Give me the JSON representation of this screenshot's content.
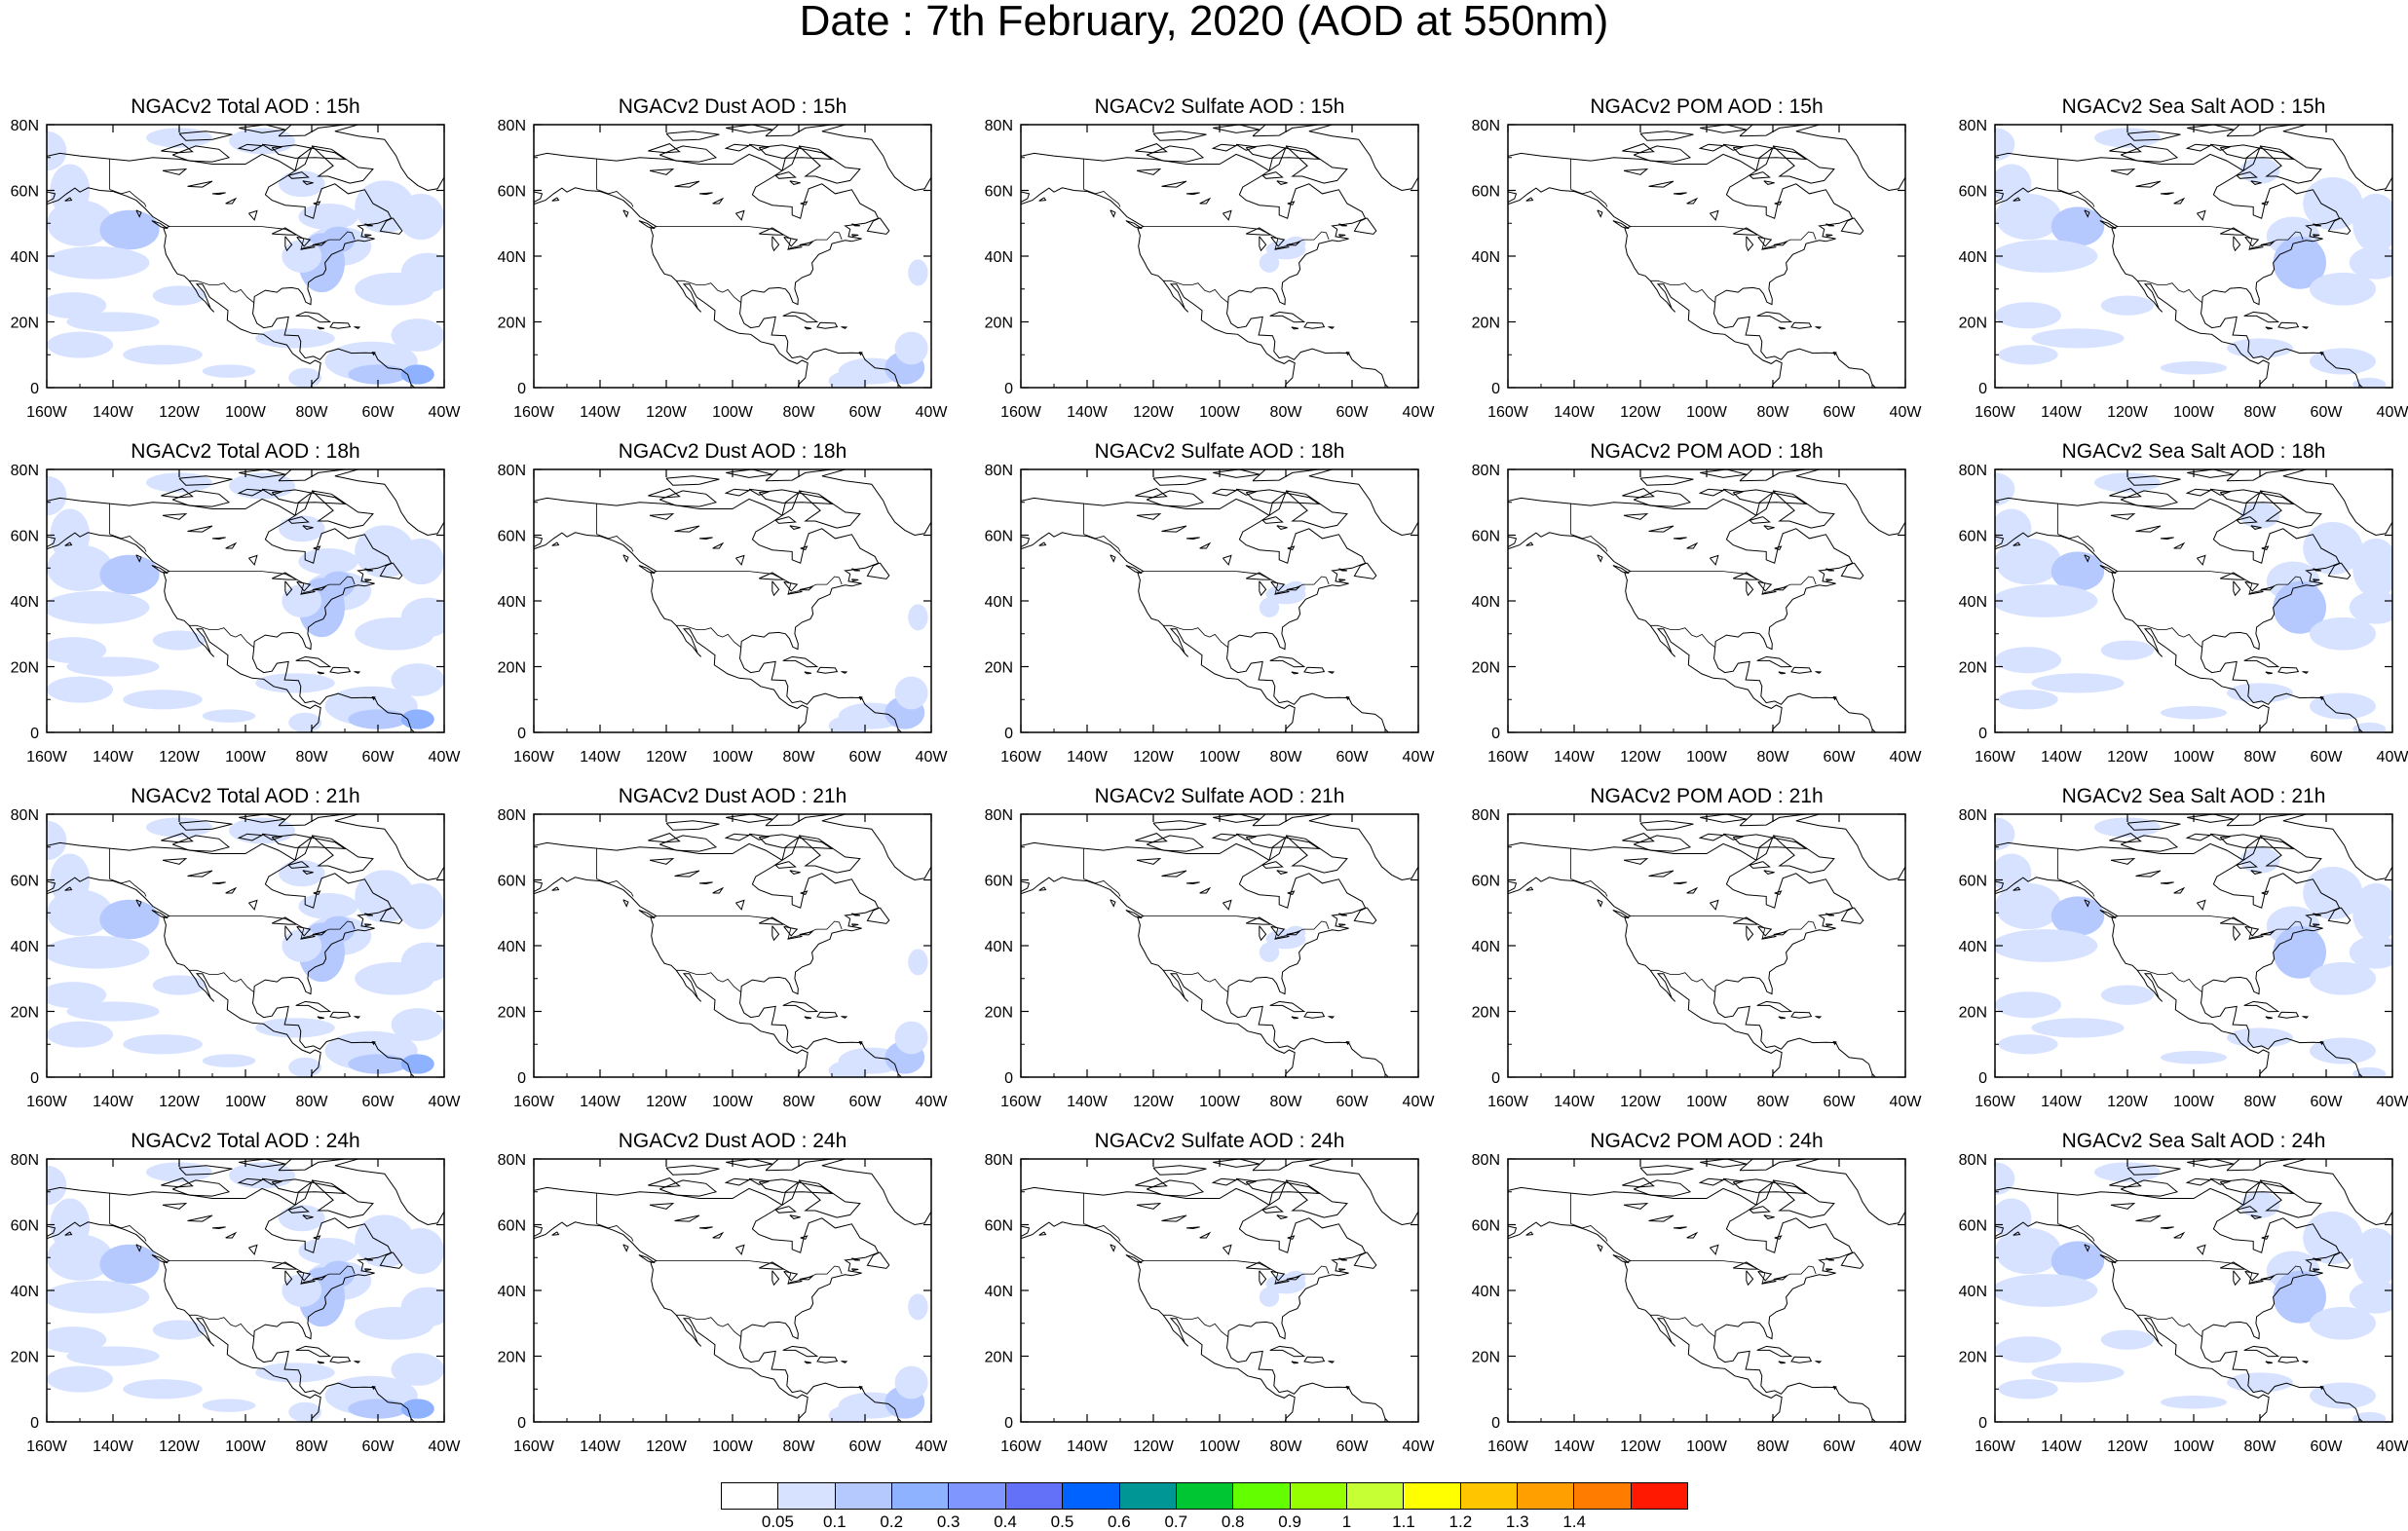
{
  "title": "Date : 7th February, 2020 (AOD at 550nm)",
  "panels": [
    {
      "title": "NGACv2 Total AOD : 15h",
      "type": "total"
    },
    {
      "title": "NGACv2 Dust AOD : 15h",
      "type": "dust"
    },
    {
      "title": "NGACv2 Sulfate AOD : 15h",
      "type": "sulfate"
    },
    {
      "title": "NGACv2 POM AOD : 15h",
      "type": "pom"
    },
    {
      "title": "NGACv2 Sea Salt AOD : 15h",
      "type": "seasalt"
    },
    {
      "title": "NGACv2 Total AOD : 18h",
      "type": "total"
    },
    {
      "title": "NGACv2 Dust AOD : 18h",
      "type": "dust"
    },
    {
      "title": "NGACv2 Sulfate AOD : 18h",
      "type": "sulfate"
    },
    {
      "title": "NGACv2 POM AOD : 18h",
      "type": "pom"
    },
    {
      "title": "NGACv2 Sea Salt AOD : 18h",
      "type": "seasalt"
    },
    {
      "title": "NGACv2 Total AOD : 21h",
      "type": "total"
    },
    {
      "title": "NGACv2 Dust AOD : 21h",
      "type": "dust"
    },
    {
      "title": "NGACv2 Sulfate AOD : 21h",
      "type": "sulfate"
    },
    {
      "title": "NGACv2 POM AOD : 21h",
      "type": "pom"
    },
    {
      "title": "NGACv2 Sea Salt AOD : 21h",
      "type": "seasalt"
    },
    {
      "title": "NGACv2 Total AOD : 24h",
      "type": "total"
    },
    {
      "title": "NGACv2 Dust AOD : 24h",
      "type": "dust"
    },
    {
      "title": "NGACv2 Sulfate AOD : 24h",
      "type": "sulfate"
    },
    {
      "title": "NGACv2 POM AOD : 24h",
      "type": "pom"
    },
    {
      "title": "NGACv2 Sea Salt  AOD : 24h",
      "type": "seasalt"
    }
  ],
  "map": {
    "lon_range": [
      -160,
      -40
    ],
    "lat_range": [
      0,
      80
    ],
    "x_ticks": [
      "160W",
      "140W",
      "120W",
      "100W",
      "80W",
      "60W",
      "40W"
    ],
    "y_ticks": [
      "0",
      "20N",
      "40N",
      "60N",
      "80N"
    ]
  },
  "colorbar": {
    "colors": [
      "#ffffff",
      "#d6e2ff",
      "#b5c9ff",
      "#8eb2ff",
      "#7f96ff",
      "#6370f8",
      "#0062ff",
      "#009696",
      "#00c633",
      "#63ff00",
      "#96ff00",
      "#c6ff33",
      "#ffff00",
      "#ffc600",
      "#ffa000",
      "#ff7c00",
      "#ff1900"
    ],
    "labels": [
      "0.05",
      "0.1",
      "0.2",
      "0.3",
      "0.4",
      "0.5",
      "0.6",
      "0.7",
      "0.8",
      "0.9",
      "1",
      "1.1",
      "1.2",
      "1.3",
      "1.4"
    ]
  }
}
